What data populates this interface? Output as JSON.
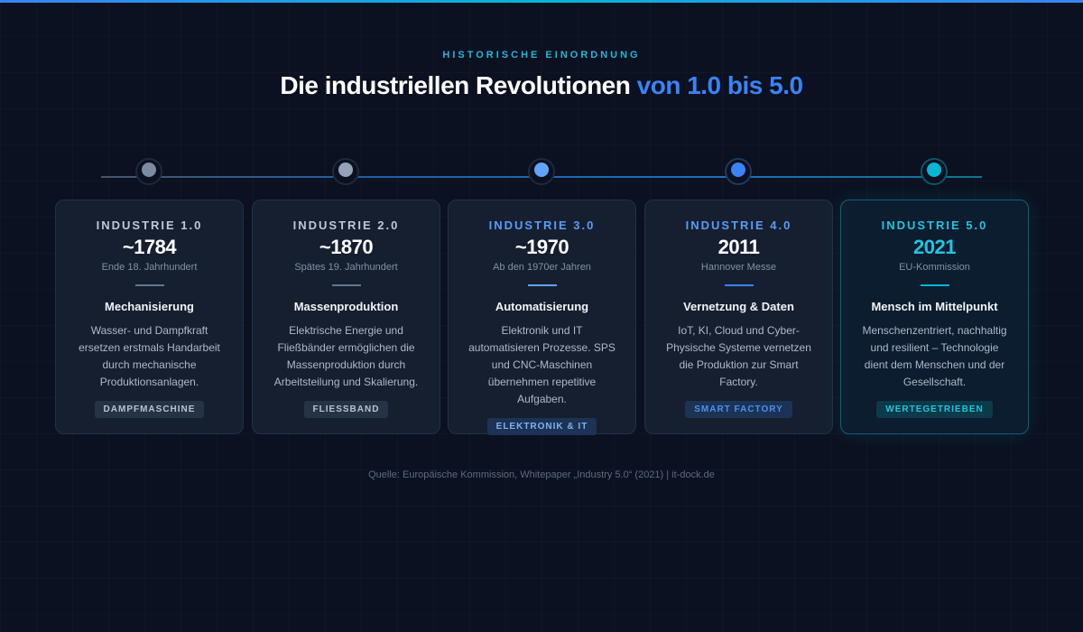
{
  "header": {
    "eyebrow": "HISTORISCHE EINORDNUNG",
    "title_main": "Die industriellen Revolutionen ",
    "title_accent": "von 1.0 bis 5.0"
  },
  "cards": [
    {
      "label": "INDUSTRIE 1.0",
      "year": "~1784",
      "sub": "Ende 18. Jahrhundert",
      "heading": "Mechanisierung",
      "desc": "Wasser- und Dampfkraft ersetzen erstmals Handarbeit durch mechanische Produktionsanlagen.",
      "tag": "DAMPFMASCHINE",
      "color": "#7c8aa3"
    },
    {
      "label": "INDUSTRIE 2.0",
      "year": "~1870",
      "sub": "Spätes 19. Jahrhundert",
      "heading": "Massenproduktion",
      "desc": "Elektrische Energie und Fließbänder ermöglichen die Massenproduktion durch Arbeitsteilung und Skalierung.",
      "tag": "FLIESSBAND",
      "color": "#94a3b8"
    },
    {
      "label": "INDUSTRIE 3.0",
      "year": "~1970",
      "sub": "Ab den 1970er Jahren",
      "heading": "Automatisierung",
      "desc": "Elektronik und IT automatisieren Prozesse. SPS und CNC-Maschinen übernehmen repetitive Aufgaben.",
      "tag": "ELEKTRONIK & IT",
      "color": "#60a5fa"
    },
    {
      "label": "INDUSTRIE 4.0",
      "year": "2011",
      "sub": "Hannover Messe",
      "heading": "Vernetzung & Daten",
      "desc": "IoT, KI, Cloud und Cyber-Physische Systeme vernetzen die Produktion zur Smart Factory.",
      "tag": "SMART FACTORY",
      "color": "#3b82f6"
    },
    {
      "label": "INDUSTRIE 5.0",
      "year": "2021",
      "sub": "EU-Kommission",
      "heading": "Mensch im Mittelpunkt",
      "desc": "Menschenzentriert, nachhaltig und resilient – Technologie dient dem Menschen und der Gesellschaft.",
      "tag": "WERTEGETRIEBEN",
      "color": "#06b6d4"
    }
  ],
  "footer": {
    "source": "Quelle: Europäische Kommission, Whitepaper „Industry 5.0“ (2021) | it-dock.de"
  }
}
